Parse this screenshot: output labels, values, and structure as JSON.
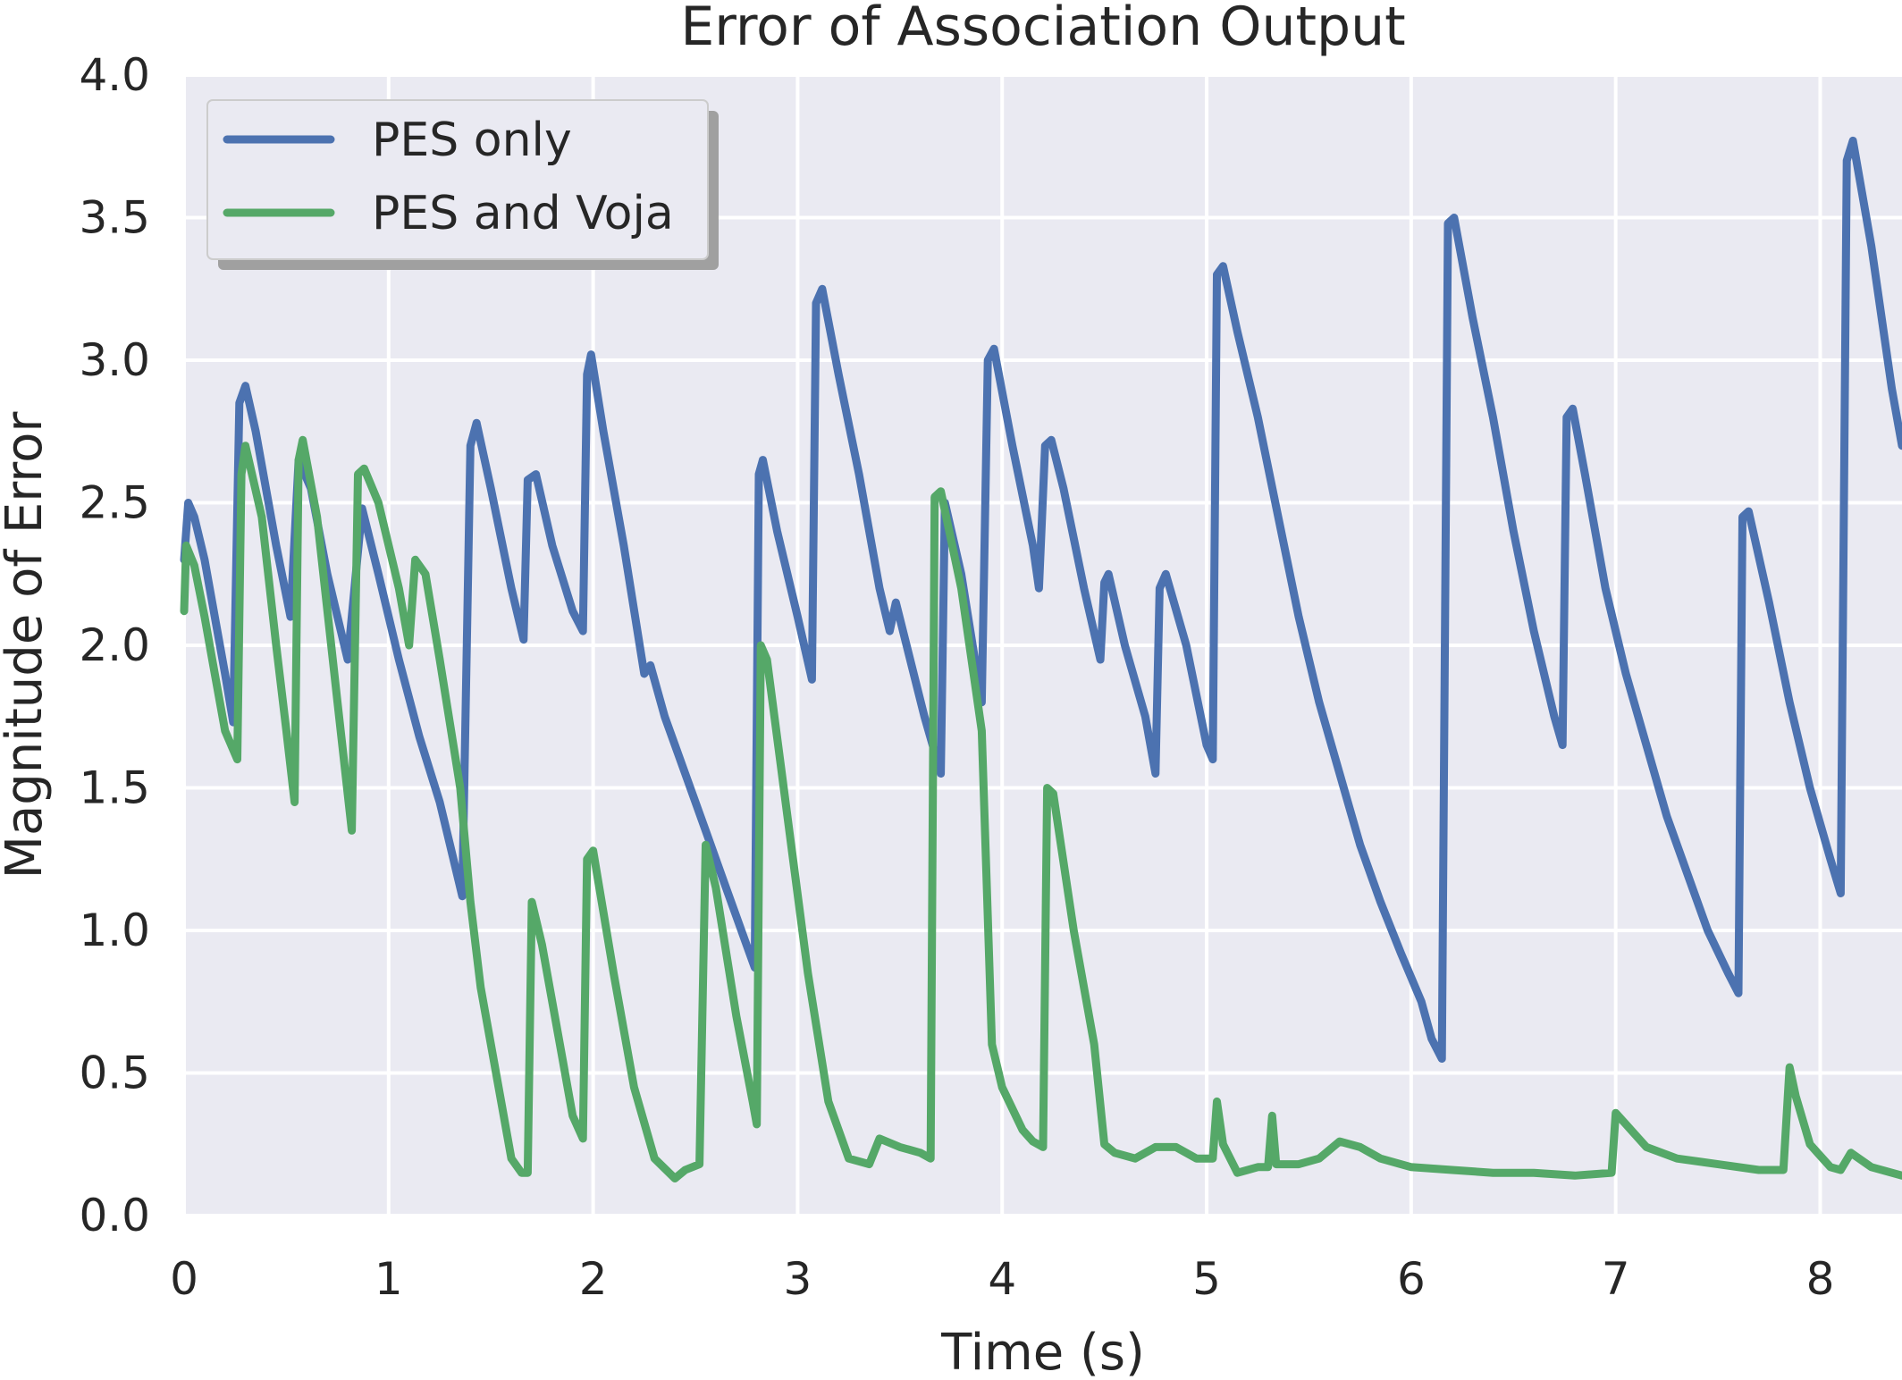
{
  "chart_data": {
    "type": "line",
    "title": "Error of Association Output",
    "xlabel": "Time (s)",
    "ylabel": "Magnitude of Error",
    "xlim": [
      0,
      8.4
    ],
    "ylim": [
      0,
      4.0
    ],
    "x_ticks": [
      "0",
      "1",
      "2",
      "3",
      "4",
      "5",
      "6",
      "7",
      "8"
    ],
    "y_ticks": [
      "0.0",
      "0.5",
      "1.0",
      "1.5",
      "2.0",
      "2.5",
      "3.0",
      "3.5",
      "4.0"
    ],
    "grid": true,
    "legend_position": "top-left",
    "colors": {
      "plot_background": "#eaeaf2",
      "grid": "#ffffff",
      "text": "#262626"
    },
    "series": [
      {
        "name": "PES only",
        "color": "#4c72b0",
        "points": [
          [
            0.0,
            2.3
          ],
          [
            0.02,
            2.5
          ],
          [
            0.05,
            2.45
          ],
          [
            0.1,
            2.3
          ],
          [
            0.15,
            2.1
          ],
          [
            0.2,
            1.9
          ],
          [
            0.24,
            1.73
          ],
          [
            0.27,
            2.85
          ],
          [
            0.3,
            2.91
          ],
          [
            0.35,
            2.75
          ],
          [
            0.45,
            2.35
          ],
          [
            0.52,
            2.1
          ],
          [
            0.56,
            2.65
          ],
          [
            0.62,
            2.55
          ],
          [
            0.7,
            2.25
          ],
          [
            0.8,
            1.95
          ],
          [
            0.87,
            2.48
          ],
          [
            0.95,
            2.25
          ],
          [
            1.05,
            1.95
          ],
          [
            1.15,
            1.68
          ],
          [
            1.25,
            1.45
          ],
          [
            1.3,
            1.3
          ],
          [
            1.36,
            1.12
          ],
          [
            1.4,
            2.7
          ],
          [
            1.43,
            2.78
          ],
          [
            1.5,
            2.55
          ],
          [
            1.6,
            2.2
          ],
          [
            1.66,
            2.02
          ],
          [
            1.68,
            2.58
          ],
          [
            1.72,
            2.6
          ],
          [
            1.8,
            2.35
          ],
          [
            1.9,
            2.12
          ],
          [
            1.95,
            2.05
          ],
          [
            1.97,
            2.95
          ],
          [
            1.99,
            3.02
          ],
          [
            2.05,
            2.75
          ],
          [
            2.15,
            2.35
          ],
          [
            2.25,
            1.9
          ],
          [
            2.28,
            1.93
          ],
          [
            2.35,
            1.75
          ],
          [
            2.45,
            1.55
          ],
          [
            2.55,
            1.35
          ],
          [
            2.65,
            1.15
          ],
          [
            2.75,
            0.95
          ],
          [
            2.79,
            0.87
          ],
          [
            2.81,
            2.6
          ],
          [
            2.83,
            2.65
          ],
          [
            2.9,
            2.4
          ],
          [
            3.0,
            2.1
          ],
          [
            3.07,
            1.88
          ],
          [
            3.09,
            3.2
          ],
          [
            3.12,
            3.25
          ],
          [
            3.2,
            2.95
          ],
          [
            3.3,
            2.6
          ],
          [
            3.4,
            2.2
          ],
          [
            3.45,
            2.05
          ],
          [
            3.48,
            2.15
          ],
          [
            3.55,
            1.95
          ],
          [
            3.62,
            1.75
          ],
          [
            3.7,
            1.55
          ],
          [
            3.72,
            2.5
          ],
          [
            3.8,
            2.25
          ],
          [
            3.9,
            1.8
          ],
          [
            3.93,
            3.0
          ],
          [
            3.96,
            3.04
          ],
          [
            4.05,
            2.7
          ],
          [
            4.15,
            2.35
          ],
          [
            4.18,
            2.2
          ],
          [
            4.21,
            2.7
          ],
          [
            4.24,
            2.72
          ],
          [
            4.3,
            2.55
          ],
          [
            4.4,
            2.2
          ],
          [
            4.48,
            1.95
          ],
          [
            4.5,
            2.22
          ],
          [
            4.52,
            2.25
          ],
          [
            4.6,
            2.0
          ],
          [
            4.7,
            1.75
          ],
          [
            4.75,
            1.55
          ],
          [
            4.77,
            2.2
          ],
          [
            4.8,
            2.25
          ],
          [
            4.9,
            2.0
          ],
          [
            5.0,
            1.65
          ],
          [
            5.03,
            1.6
          ],
          [
            5.05,
            3.3
          ],
          [
            5.08,
            3.33
          ],
          [
            5.15,
            3.1
          ],
          [
            5.25,
            2.8
          ],
          [
            5.35,
            2.45
          ],
          [
            5.45,
            2.1
          ],
          [
            5.55,
            1.8
          ],
          [
            5.65,
            1.55
          ],
          [
            5.75,
            1.3
          ],
          [
            5.85,
            1.1
          ],
          [
            5.95,
            0.92
          ],
          [
            6.05,
            0.75
          ],
          [
            6.1,
            0.62
          ],
          [
            6.15,
            0.55
          ],
          [
            6.18,
            3.48
          ],
          [
            6.21,
            3.5
          ],
          [
            6.3,
            3.15
          ],
          [
            6.4,
            2.8
          ],
          [
            6.5,
            2.4
          ],
          [
            6.6,
            2.05
          ],
          [
            6.7,
            1.75
          ],
          [
            6.74,
            1.65
          ],
          [
            6.76,
            2.8
          ],
          [
            6.79,
            2.83
          ],
          [
            6.85,
            2.6
          ],
          [
            6.95,
            2.2
          ],
          [
            7.05,
            1.9
          ],
          [
            7.15,
            1.65
          ],
          [
            7.25,
            1.4
          ],
          [
            7.35,
            1.2
          ],
          [
            7.45,
            1.0
          ],
          [
            7.55,
            0.85
          ],
          [
            7.6,
            0.78
          ],
          [
            7.62,
            2.45
          ],
          [
            7.65,
            2.47
          ],
          [
            7.75,
            2.15
          ],
          [
            7.85,
            1.8
          ],
          [
            7.95,
            1.5
          ],
          [
            8.05,
            1.25
          ],
          [
            8.1,
            1.13
          ],
          [
            8.13,
            3.7
          ],
          [
            8.16,
            3.77
          ],
          [
            8.25,
            3.4
          ],
          [
            8.35,
            2.9
          ],
          [
            8.4,
            2.7
          ]
        ]
      },
      {
        "name": "PES and Voja",
        "color": "#55a868",
        "points": [
          [
            0.0,
            2.12
          ],
          [
            0.01,
            2.35
          ],
          [
            0.05,
            2.28
          ],
          [
            0.1,
            2.1
          ],
          [
            0.15,
            1.9
          ],
          [
            0.2,
            1.7
          ],
          [
            0.26,
            1.6
          ],
          [
            0.28,
            2.6
          ],
          [
            0.3,
            2.7
          ],
          [
            0.38,
            2.45
          ],
          [
            0.45,
            2.0
          ],
          [
            0.5,
            1.7
          ],
          [
            0.54,
            1.45
          ],
          [
            0.56,
            2.65
          ],
          [
            0.58,
            2.72
          ],
          [
            0.65,
            2.45
          ],
          [
            0.75,
            1.8
          ],
          [
            0.82,
            1.35
          ],
          [
            0.85,
            2.6
          ],
          [
            0.88,
            2.62
          ],
          [
            0.95,
            2.5
          ],
          [
            1.05,
            2.2
          ],
          [
            1.1,
            2.0
          ],
          [
            1.13,
            2.3
          ],
          [
            1.18,
            2.25
          ],
          [
            1.25,
            1.95
          ],
          [
            1.35,
            1.5
          ],
          [
            1.4,
            1.1
          ],
          [
            1.45,
            0.8
          ],
          [
            1.55,
            0.4
          ],
          [
            1.6,
            0.2
          ],
          [
            1.65,
            0.15
          ],
          [
            1.68,
            0.15
          ],
          [
            1.7,
            1.1
          ],
          [
            1.75,
            0.95
          ],
          [
            1.85,
            0.55
          ],
          [
            1.9,
            0.35
          ],
          [
            1.95,
            0.27
          ],
          [
            1.97,
            1.25
          ],
          [
            2.0,
            1.28
          ],
          [
            2.1,
            0.85
          ],
          [
            2.2,
            0.45
          ],
          [
            2.3,
            0.2
          ],
          [
            2.4,
            0.13
          ],
          [
            2.45,
            0.16
          ],
          [
            2.52,
            0.18
          ],
          [
            2.55,
            1.3
          ],
          [
            2.6,
            1.15
          ],
          [
            2.7,
            0.7
          ],
          [
            2.78,
            0.4
          ],
          [
            2.8,
            0.32
          ],
          [
            2.82,
            2.0
          ],
          [
            2.85,
            1.95
          ],
          [
            2.95,
            1.4
          ],
          [
            3.05,
            0.85
          ],
          [
            3.15,
            0.4
          ],
          [
            3.25,
            0.2
          ],
          [
            3.35,
            0.18
          ],
          [
            3.4,
            0.27
          ],
          [
            3.5,
            0.24
          ],
          [
            3.6,
            0.22
          ],
          [
            3.65,
            0.2
          ],
          [
            3.67,
            2.52
          ],
          [
            3.7,
            2.54
          ],
          [
            3.8,
            2.2
          ],
          [
            3.9,
            1.7
          ],
          [
            3.95,
            0.6
          ],
          [
            4.0,
            0.45
          ],
          [
            4.1,
            0.3
          ],
          [
            4.15,
            0.26
          ],
          [
            4.2,
            0.24
          ],
          [
            4.22,
            1.5
          ],
          [
            4.25,
            1.48
          ],
          [
            4.35,
            1.0
          ],
          [
            4.45,
            0.6
          ],
          [
            4.5,
            0.25
          ],
          [
            4.55,
            0.22
          ],
          [
            4.65,
            0.2
          ],
          [
            4.75,
            0.24
          ],
          [
            4.85,
            0.24
          ],
          [
            4.95,
            0.2
          ],
          [
            5.03,
            0.2
          ],
          [
            5.05,
            0.4
          ],
          [
            5.08,
            0.25
          ],
          [
            5.15,
            0.15
          ],
          [
            5.25,
            0.17
          ],
          [
            5.3,
            0.17
          ],
          [
            5.32,
            0.35
          ],
          [
            5.34,
            0.18
          ],
          [
            5.45,
            0.18
          ],
          [
            5.55,
            0.2
          ],
          [
            5.65,
            0.26
          ],
          [
            5.75,
            0.24
          ],
          [
            5.85,
            0.2
          ],
          [
            6.0,
            0.17
          ],
          [
            6.2,
            0.16
          ],
          [
            6.4,
            0.15
          ],
          [
            6.6,
            0.15
          ],
          [
            6.8,
            0.14
          ],
          [
            6.98,
            0.15
          ],
          [
            7.0,
            0.36
          ],
          [
            7.05,
            0.32
          ],
          [
            7.15,
            0.24
          ],
          [
            7.3,
            0.2
          ],
          [
            7.5,
            0.18
          ],
          [
            7.7,
            0.16
          ],
          [
            7.82,
            0.16
          ],
          [
            7.85,
            0.52
          ],
          [
            7.88,
            0.42
          ],
          [
            7.95,
            0.25
          ],
          [
            8.05,
            0.17
          ],
          [
            8.1,
            0.16
          ],
          [
            8.15,
            0.22
          ],
          [
            8.25,
            0.17
          ],
          [
            8.4,
            0.14
          ]
        ]
      }
    ]
  }
}
